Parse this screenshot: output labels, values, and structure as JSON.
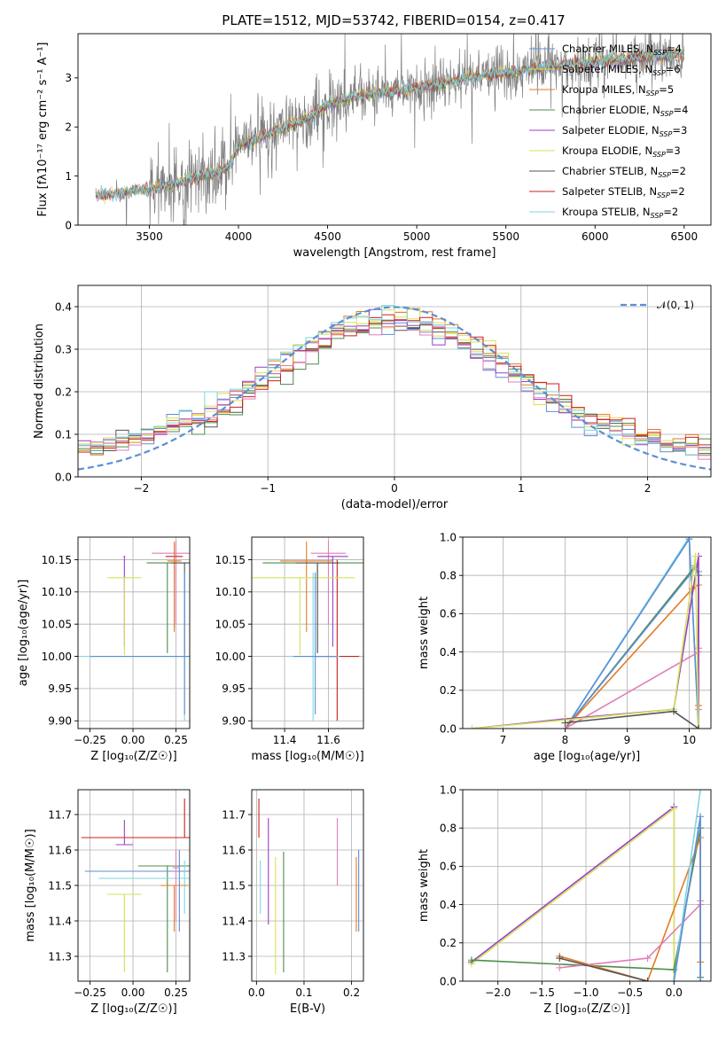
{
  "figure": {
    "title": "PLATE=1512, MJD=53742, FIBERID=0154, z=0.417"
  },
  "colors": {
    "Chabrier MILES": "#5b8fd6",
    "Salpeter MILES": "#e9d84b",
    "Kroupa MILES": "#e27b24",
    "Chabrier ELODIE": "#4c8c4a",
    "Salpeter ELODIE": "#9a3fc8",
    "Kroupa ELODIE": "#d4e35a",
    "Chabrier STELIB": "#555555",
    "Salpeter STELIB": "#cc1f1f",
    "Kroupa STELIB": "#7fd6e0",
    "pink": "#e07fb8",
    "data": "#808080",
    "normal": "#5b8fd6"
  },
  "chart_data": [
    {
      "id": "spectrum",
      "type": "line",
      "title": "PLATE=1512, MJD=53742, FIBERID=0154, z=0.417",
      "xlabel": "wavelength [Angstrom, rest frame]",
      "ylabel": "Flux [fλ10⁻¹⁷ erg cm⁻² s⁻¹ A⁻¹]",
      "xlim": [
        3100,
        6650
      ],
      "ylim": [
        0,
        3.9
      ],
      "xticks": [
        3500,
        4000,
        4500,
        5000,
        5500,
        6000,
        6500
      ],
      "yticks": [
        0,
        1,
        2,
        3
      ],
      "grid": false,
      "legend_placement": "top-right",
      "series": [
        {
          "name": "Chabrier MILES, N_SSP=4",
          "label_main": "Chabrier MILES, N",
          "label_sub": "SSP",
          "label_tail": "=4",
          "color": "#5b8fd6"
        },
        {
          "name": "Salpeter MILES, N_SSP=6",
          "label_main": "Salpeter MILES, N",
          "label_sub": "SSP",
          "label_tail": "=6",
          "color": "#e9d84b"
        },
        {
          "name": "Kroupa MILES, N_SSP=5",
          "label_main": "Kroupa MILES, N",
          "label_sub": "SSP",
          "label_tail": "=5",
          "color": "#e27b24"
        },
        {
          "name": "Chabrier ELODIE, N_SSP=4",
          "label_main": "Chabrier ELODIE, N",
          "label_sub": "SSP",
          "label_tail": "=4",
          "color": "#4c8c4a"
        },
        {
          "name": "Salpeter ELODIE, N_SSP=3",
          "label_main": "Salpeter ELODIE, N",
          "label_sub": "SSP",
          "label_tail": "=3",
          "color": "#9a3fc8"
        },
        {
          "name": "Kroupa ELODIE, N_SSP=3",
          "label_main": "Kroupa ELODIE, N",
          "label_sub": "SSP",
          "label_tail": "=3",
          "color": "#d4e35a"
        },
        {
          "name": "Chabrier STELIB, N_SSP=2",
          "label_main": "Chabrier STELIB, N",
          "label_sub": "SSP",
          "label_tail": "=2",
          "color": "#555555"
        },
        {
          "name": "Salpeter STELIB, N_SSP=2",
          "label_main": "Salpeter STELIB, N",
          "label_sub": "SSP",
          "label_tail": "=2",
          "color": "#cc1f1f"
        },
        {
          "name": "Kroupa STELIB, N_SSP=2",
          "label_main": "Kroupa STELIB, N",
          "label_sub": "SSP",
          "label_tail": "=2",
          "color": "#7fd6e0"
        }
      ],
      "model_curve": {
        "x": [
          3200,
          3300,
          3400,
          3500,
          3600,
          3700,
          3800,
          3900,
          3950,
          4000,
          4100,
          4200,
          4300,
          4400,
          4500,
          4600,
          4700,
          4800,
          4900,
          5000,
          5100,
          5200,
          5300,
          5400,
          5500,
          5600,
          5700,
          5800,
          5900,
          6000,
          6100,
          6200,
          6300,
          6400,
          6500
        ],
        "y": [
          0.6,
          0.62,
          0.68,
          0.72,
          0.8,
          0.92,
          1.0,
          1.1,
          1.2,
          1.6,
          1.75,
          1.9,
          2.05,
          2.2,
          2.45,
          2.55,
          2.65,
          2.7,
          2.75,
          2.8,
          2.85,
          2.92,
          3.0,
          3.05,
          3.1,
          3.15,
          3.2,
          3.25,
          3.28,
          3.32,
          3.35,
          3.38,
          3.42,
          3.45,
          3.48
        ]
      }
    },
    {
      "id": "residuals",
      "type": "histogram",
      "xlabel": "(data-model)/error",
      "ylabel": "Normed distribution",
      "xlim": [
        -2.5,
        2.5
      ],
      "ylim": [
        0,
        0.45
      ],
      "xticks": [
        -2,
        -1,
        0,
        1,
        2
      ],
      "yticks": [
        0.0,
        0.1,
        0.2,
        0.3,
        0.4
      ],
      "grid": true,
      "legend_placement": "top-right",
      "reference": {
        "name": "𝒩(0, 1)",
        "mean": 0,
        "sigma": 1
      }
    },
    {
      "id": "age_vs_Z",
      "type": "errorbar",
      "xlabel": "Z [log₁₀(Z/Z☉)]",
      "ylabel": "age  [log₁₀(age/yr)]",
      "xlim": [
        -0.32,
        0.33
      ],
      "ylim": [
        9.888,
        10.185
      ],
      "xticks": [
        -0.25,
        0.0,
        0.25
      ],
      "yticks": [
        9.9,
        9.95,
        10.0,
        10.05,
        10.1,
        10.15
      ],
      "grid": true,
      "points": [
        {
          "color": "#e07fb8",
          "x": 0.25,
          "y": 10.16,
          "xerr": 0.14,
          "yerr": [
            0.11,
            0.02
          ]
        },
        {
          "color": "#9a3fc8",
          "x": -0.05,
          "y": 10.155,
          "xerr": 0.005,
          "yerr": [
            0.14,
            0.0
          ]
        },
        {
          "color": "#cc1f1f",
          "x": 0.24,
          "y": 10.155,
          "xerr": 0.05,
          "yerr": [
            0.11,
            0.02
          ]
        },
        {
          "color": "#e27b24",
          "x": 0.24,
          "y": 10.148,
          "xerr": 0.04,
          "yerr": [
            0.11,
            0.03
          ]
        },
        {
          "color": "#4c8c4a",
          "x": 0.2,
          "y": 10.145,
          "xerr": 0.12,
          "yerr": [
            0.14,
            0.0
          ]
        },
        {
          "color": "#d4e35a",
          "x": -0.05,
          "y": 10.122,
          "xerr": 0.1,
          "yerr": [
            0.12,
            0.0
          ]
        },
        {
          "color": "#555555",
          "x": 0.3,
          "y": 10.145,
          "xerr": 0.08,
          "yerr": [
            0.14,
            0.0
          ]
        },
        {
          "color": "#7fd6e0",
          "x": 0.3,
          "y": 10.0,
          "xerr": 0.63,
          "yerr": [
            0.1,
            0.13
          ]
        },
        {
          "color": "#5b8fd6",
          "x": 0.3,
          "y": 10.0,
          "xerr": 0.55,
          "yerr": [
            0.09,
            0.13
          ]
        }
      ]
    },
    {
      "id": "age_vs_mass",
      "type": "errorbar",
      "xlabel": "mass [log₁₀(M/M☉)]",
      "ylabel": "",
      "xlim": [
        11.25,
        11.76
      ],
      "ylim": [
        9.888,
        10.185
      ],
      "xticks": [
        11.4,
        11.6
      ],
      "yticks": [
        9.9,
        9.95,
        10.0,
        10.05,
        10.1,
        10.15
      ],
      "grid": true,
      "points": [
        {
          "color": "#e07fb8",
          "x": 11.6,
          "y": 10.16,
          "xerr": 0.08,
          "yerr": [
            0.11,
            0.02
          ]
        },
        {
          "color": "#9a3fc8",
          "x": 11.62,
          "y": 10.155,
          "xerr": 0.07,
          "yerr": [
            0.14,
            0.0
          ]
        },
        {
          "color": "#cc1f1f",
          "x": 11.64,
          "y": 10.0,
          "xerr": 0.1,
          "yerr": [
            0.1,
            0.15
          ]
        },
        {
          "color": "#e27b24",
          "x": 11.5,
          "y": 10.148,
          "xerr": 0.12,
          "yerr": [
            0.11,
            0.03
          ]
        },
        {
          "color": "#4c8c4a",
          "x": 11.55,
          "y": 10.145,
          "xerr": 0.25,
          "yerr": [
            0.14,
            0.0
          ]
        },
        {
          "color": "#d4e35a",
          "x": 11.47,
          "y": 10.122,
          "xerr": 0.25,
          "yerr": [
            0.12,
            0.0
          ]
        },
        {
          "color": "#555555",
          "x": 11.55,
          "y": 10.145,
          "xerr": 0.1,
          "yerr": [
            0.14,
            0.0
          ]
        },
        {
          "color": "#7fd6e0",
          "x": 11.53,
          "y": 10.0,
          "xerr": 0.12,
          "yerr": [
            0.1,
            0.13
          ]
        },
        {
          "color": "#5b8fd6",
          "x": 11.54,
          "y": 10.0,
          "xerr": 0.1,
          "yerr": [
            0.09,
            0.13
          ]
        }
      ]
    },
    {
      "id": "weight_vs_age",
      "type": "line",
      "xlabel": "age  [log₁₀(age/yr)]",
      "ylabel": "mass weight",
      "xlim": [
        6.35,
        10.35
      ],
      "ylim": [
        0,
        1
      ],
      "xticks": [
        7,
        8,
        9,
        10
      ],
      "yticks": [
        0.0,
        0.2,
        0.4,
        0.6,
        0.8,
        1.0
      ],
      "grid": true,
      "series": [
        {
          "color": "#7fd6e0",
          "x": [
            8.0,
            10.0,
            10.15
          ],
          "y": [
            0.0,
            1.0,
            0.0
          ]
        },
        {
          "color": "#5b8fd6",
          "x": [
            8.0,
            10.0,
            10.15
          ],
          "y": [
            0.0,
            0.99,
            0.0
          ]
        },
        {
          "color": "#4c8c4a",
          "x": [
            8.0,
            10.1,
            10.15,
            10.15
          ],
          "y": [
            0.0,
            0.85,
            0.8,
            0.0
          ]
        },
        {
          "color": "#5b8fd6",
          "x": [
            8.0,
            10.1,
            10.15,
            10.15
          ],
          "y": [
            0.0,
            0.84,
            0.82,
            0.0
          ]
        },
        {
          "color": "#e27b24",
          "x": [
            8.0,
            10.05,
            10.15,
            10.15
          ],
          "y": [
            0.0,
            0.73,
            0.75,
            0.12
          ]
        },
        {
          "color": "#e07fb8",
          "x": [
            8.0,
            10.15,
            10.15,
            10.15
          ],
          "y": [
            0.0,
            0.4,
            0.42,
            0.1
          ]
        },
        {
          "color": "#9a3fc8",
          "x": [
            6.5,
            8.0,
            9.75,
            10.15,
            10.15
          ],
          "y": [
            0.0,
            0.05,
            0.1,
            0.9,
            0.0
          ]
        },
        {
          "color": "#d4e35a",
          "x": [
            6.5,
            8.0,
            9.75,
            10.1,
            10.15
          ],
          "y": [
            0.0,
            0.045,
            0.1,
            0.9,
            0.0
          ]
        },
        {
          "color": "#555555",
          "x": [
            8.0,
            9.75,
            10.15
          ],
          "y": [
            0.03,
            0.09,
            0.0
          ]
        }
      ]
    },
    {
      "id": "mass_vs_Z",
      "type": "errorbar",
      "xlabel": "Z [log₁₀(Z/Z☉)]",
      "ylabel": "mass [log₁₀(M/M☉)]",
      "xlim": [
        -0.32,
        0.33
      ],
      "ylim": [
        11.23,
        11.77
      ],
      "xticks": [
        -0.25,
        0.0,
        0.25
      ],
      "yticks": [
        11.3,
        11.4,
        11.5,
        11.6,
        11.7
      ],
      "grid": true,
      "points": [
        {
          "color": "#cc1f1f",
          "x": 0.3,
          "y": 11.635,
          "xerr": 0.6,
          "yerr": [
            0.0,
            0.11
          ]
        },
        {
          "color": "#9a3fc8",
          "x": -0.05,
          "y": 11.615,
          "xerr": 0.05,
          "yerr": [
            0.0,
            0.07
          ]
        },
        {
          "color": "#4c8c4a",
          "x": 0.2,
          "y": 11.555,
          "xerr": 0.17,
          "yerr": [
            0.3,
            0.0
          ]
        },
        {
          "color": "#5b8fd6",
          "x": 0.27,
          "y": 11.54,
          "xerr": 0.55,
          "yerr": [
            0.17,
            0.06
          ]
        },
        {
          "color": "#7fd6e0",
          "x": 0.3,
          "y": 11.52,
          "xerr": 0.5,
          "yerr": [
            0.1,
            0.05
          ]
        },
        {
          "color": "#e27b24",
          "x": 0.24,
          "y": 11.5,
          "xerr": 0.08,
          "yerr": [
            0.13,
            0.0
          ]
        },
        {
          "color": "#d4e35a",
          "x": -0.05,
          "y": 11.475,
          "xerr": 0.1,
          "yerr": [
            0.22,
            0.0
          ]
        },
        {
          "color": "#e07fb8",
          "x": 0.25,
          "y": 11.55,
          "xerr": 0.02,
          "yerr": [
            0.15,
            0.05
          ]
        }
      ]
    },
    {
      "id": "mass_vs_ebv",
      "type": "errorbar",
      "xlabel": "E(B-V)",
      "ylabel": "",
      "xlim": [
        -0.01,
        0.225
      ],
      "ylim": [
        11.23,
        11.77
      ],
      "xticks": [
        0.0,
        0.1,
        0.2
      ],
      "yticks": [
        11.3,
        11.4,
        11.5,
        11.6,
        11.7
      ],
      "grid": true,
      "points": [
        {
          "color": "#cc1f1f",
          "x": 0.005,
          "y": 11.635,
          "yerr": [
            0.0,
            0.11
          ]
        },
        {
          "color": "#9a3fc8",
          "x": 0.025,
          "y": 11.6,
          "yerr": [
            0.21,
            0.09
          ]
        },
        {
          "color": "#7fd6e0",
          "x": 0.008,
          "y": 11.52,
          "yerr": [
            0.1,
            0.05
          ]
        },
        {
          "color": "#d4e35a",
          "x": 0.04,
          "y": 11.5,
          "yerr": [
            0.25,
            0.08
          ]
        },
        {
          "color": "#4c8c4a",
          "x": 0.057,
          "y": 11.555,
          "yerr": [
            0.3,
            0.04
          ]
        },
        {
          "color": "#e07fb8",
          "x": 0.17,
          "y": 11.6,
          "yerr": [
            0.1,
            0.09
          ]
        },
        {
          "color": "#e27b24",
          "x": 0.21,
          "y": 11.5,
          "yerr": [
            0.13,
            0.08
          ]
        },
        {
          "color": "#5b8fd6",
          "x": 0.215,
          "y": 11.5,
          "yerr": [
            0.13,
            0.1
          ]
        }
      ]
    },
    {
      "id": "weight_vs_Z",
      "type": "line",
      "xlabel": "Z [log₁₀(Z/Z☉)]",
      "ylabel": "mass weight",
      "xlim": [
        -2.4,
        0.42
      ],
      "ylim": [
        0,
        1
      ],
      "xticks": [
        -2.0,
        -1.5,
        -1.0,
        -0.5,
        0.0
      ],
      "yticks": [
        0.0,
        0.2,
        0.4,
        0.6,
        0.8,
        1.0
      ],
      "grid": true,
      "series": [
        {
          "color": "#9a3fc8",
          "x": [
            -2.3,
            0.0,
            0.0
          ],
          "y": [
            0.1,
            0.91,
            0.0
          ]
        },
        {
          "color": "#d4e35a",
          "x": [
            -2.3,
            0.0,
            0.0
          ],
          "y": [
            0.09,
            0.9,
            0.0
          ]
        },
        {
          "color": "#4c8c4a",
          "x": [
            -2.3,
            0.0,
            0.3,
            0.3
          ],
          "y": [
            0.11,
            0.06,
            0.8,
            0.02
          ]
        },
        {
          "color": "#e27b24",
          "x": [
            -1.3,
            -0.3,
            0.3,
            0.3
          ],
          "y": [
            0.13,
            0.0,
            0.75,
            0.1
          ]
        },
        {
          "color": "#e07fb8",
          "x": [
            -1.3,
            -0.3,
            0.3,
            0.3
          ],
          "y": [
            0.07,
            0.12,
            0.4,
            0.42
          ]
        },
        {
          "color": "#7fd6e0",
          "x": [
            0.0,
            0.3
          ],
          "y": [
            0.0,
            1.0
          ]
        },
        {
          "color": "#5b8fd6",
          "x": [
            0.0,
            0.3,
            0.3
          ],
          "y": [
            0.0,
            0.86,
            0.0
          ]
        },
        {
          "color": "#555555",
          "x": [
            -1.3,
            -0.3
          ],
          "y": [
            0.12,
            0.0
          ]
        }
      ]
    }
  ]
}
